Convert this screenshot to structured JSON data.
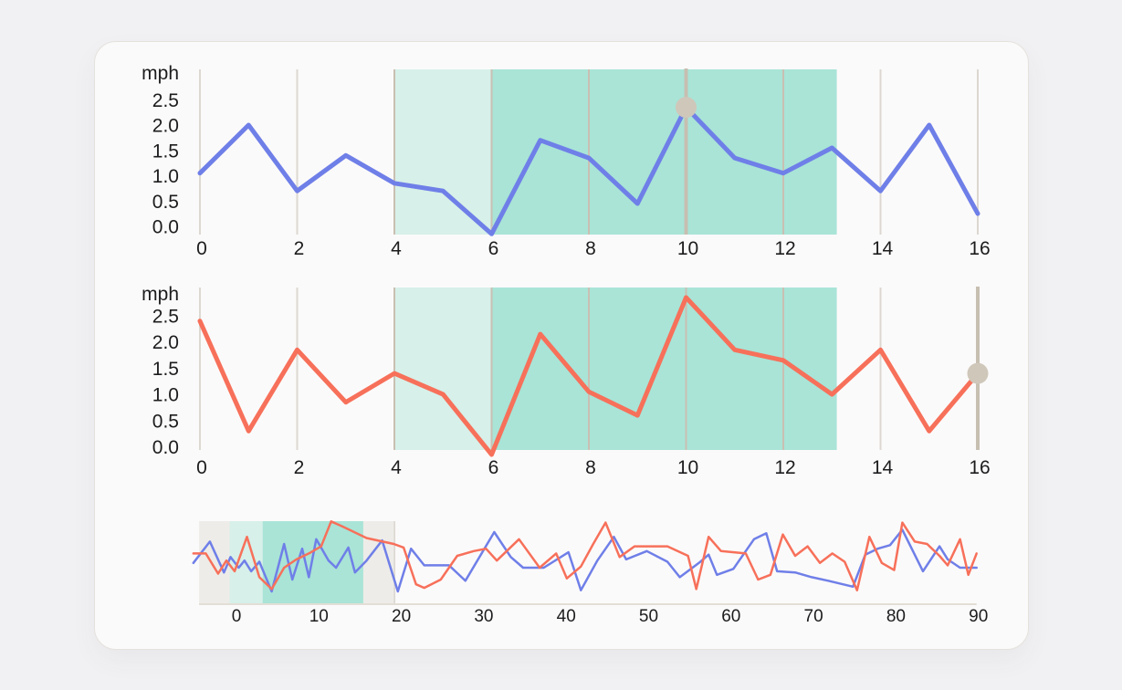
{
  "page": {
    "background": "#f1f0f2"
  },
  "card": {
    "background": "#fbfafa",
    "border_color": "#e5e2dd"
  },
  "colors": {
    "series_blue": "#6f7fe8",
    "series_orange": "#f7705a",
    "region_light": "#d7f0e9",
    "region_dark": "#a9e4d7",
    "overview_gray": "#edece8",
    "grid_light": "#dcd8d1",
    "grid_in_region": "#c9c0b3",
    "crosshair": "#c7bfb1",
    "marker": "#cfc7ba",
    "axis_line": "#e2ded6",
    "text": "#1c1c1e"
  },
  "chart_data": [
    {
      "id": "speed-chart-top",
      "type": "line",
      "title": "",
      "ylabel": "mph",
      "xlabel": "",
      "ylim": [
        0.0,
        2.5
      ],
      "xlim": [
        -0.2,
        16.3
      ],
      "grid": true,
      "legend_position": "none",
      "y_tick_labels": [
        "0.0",
        "0.5",
        "1.0",
        "1.5",
        "2.0",
        "2.5"
      ],
      "y_tick_values": [
        0.0,
        0.5,
        1.0,
        1.5,
        2.0,
        2.5
      ],
      "x_tick_labels": [
        "0",
        "2",
        "4",
        "6",
        "8",
        "10",
        "12",
        "14",
        "16"
      ],
      "x_tick_values": [
        0,
        2,
        4,
        6,
        8,
        10,
        12,
        14,
        16
      ],
      "categories": [
        0,
        1,
        2,
        3,
        4,
        5,
        6,
        7,
        8,
        9,
        10,
        11,
        12,
        13,
        14,
        15,
        16
      ],
      "series": [
        {
          "name": "blue-speed",
          "color": "series_blue",
          "values": [
            1.05,
            2.0,
            0.7,
            1.4,
            0.85,
            0.7,
            -0.15,
            1.7,
            1.35,
            0.45,
            2.35,
            1.35,
            1.05,
            1.55,
            0.7,
            2.0,
            0.25
          ]
        }
      ],
      "regions": [
        {
          "name": "selection-light",
          "from": 4,
          "to": 6,
          "color": "region_light"
        },
        {
          "name": "selection-dark",
          "from": 6,
          "to": 13.1,
          "color": "region_dark"
        }
      ],
      "crosshair": {
        "x": 10
      },
      "marker": {
        "x": 10,
        "value": 2.35
      }
    },
    {
      "id": "speed-chart-middle",
      "type": "line",
      "title": "",
      "ylabel": "mph",
      "xlabel": "",
      "ylim": [
        0.0,
        2.5
      ],
      "xlim": [
        -0.2,
        16.3
      ],
      "grid": true,
      "legend_position": "none",
      "y_tick_labels": [
        "0.0",
        "0.5",
        "1.0",
        "1.5",
        "2.0",
        "2.5"
      ],
      "y_tick_values": [
        0.0,
        0.5,
        1.0,
        1.5,
        2.0,
        2.5
      ],
      "x_tick_labels": [
        "0",
        "2",
        "4",
        "6",
        "8",
        "10",
        "12",
        "14",
        "16"
      ],
      "x_tick_values": [
        0,
        2,
        4,
        6,
        8,
        10,
        12,
        14,
        16
      ],
      "categories": [
        0,
        1,
        2,
        3,
        4,
        5,
        6,
        7,
        8,
        9,
        10,
        11,
        12,
        13,
        14,
        15,
        16
      ],
      "series": [
        {
          "name": "orange-speed",
          "color": "series_orange",
          "values": [
            2.4,
            0.3,
            1.85,
            0.85,
            1.4,
            1.0,
            -0.15,
            2.15,
            1.05,
            0.6,
            2.85,
            1.85,
            1.65,
            1.0,
            1.85,
            0.3,
            1.4
          ]
        }
      ],
      "regions": [
        {
          "name": "selection-light",
          "from": 4,
          "to": 6,
          "color": "region_light"
        },
        {
          "name": "selection-dark",
          "from": 6,
          "to": 13.1,
          "color": "region_dark"
        }
      ],
      "crosshair": {
        "x": 16
      },
      "marker": {
        "x": 16,
        "value": 1.4
      }
    },
    {
      "id": "overview-chart",
      "type": "line",
      "title": "",
      "ylabel": "",
      "xlabel": "",
      "xlim": [
        -5,
        90.5
      ],
      "grid": false,
      "legend_position": "none",
      "x_tick_labels": [
        "0",
        "10",
        "20",
        "30",
        "40",
        "50",
        "60",
        "70",
        "80",
        "90"
      ],
      "x_tick_values": [
        0,
        10,
        20,
        30,
        40,
        50,
        60,
        70,
        80,
        90
      ],
      "series": [
        {
          "name": "blue-speed-overview",
          "color": "series_blue",
          "points": [
            [
              -5,
              1.2
            ],
            [
              -3,
              2.1
            ],
            [
              -1.3,
              0.8
            ],
            [
              -0.5,
              1.45
            ],
            [
              0.5,
              1.0
            ],
            [
              1.2,
              1.3
            ],
            [
              2,
              0.85
            ],
            [
              3,
              1.25
            ],
            [
              4.5,
              0.0
            ],
            [
              6,
              2.0
            ],
            [
              7,
              0.5
            ],
            [
              8.2,
              1.8
            ],
            [
              9,
              0.6
            ],
            [
              9.9,
              2.2
            ],
            [
              11.4,
              1.3
            ],
            [
              12.3,
              1.0
            ],
            [
              13.8,
              1.85
            ],
            [
              14.6,
              0.8
            ],
            [
              16,
              1.3
            ],
            [
              17.9,
              2.15
            ],
            [
              19.8,
              0.0
            ],
            [
              21.4,
              1.8
            ],
            [
              23,
              1.1
            ],
            [
              26,
              1.1
            ],
            [
              28,
              0.45
            ],
            [
              31.5,
              2.5
            ],
            [
              33.5,
              1.45
            ],
            [
              35,
              1.0
            ],
            [
              37.5,
              1.0
            ],
            [
              40.5,
              1.65
            ],
            [
              42,
              0.05
            ],
            [
              44,
              1.3
            ],
            [
              46,
              2.3
            ],
            [
              47.5,
              1.35
            ],
            [
              50,
              1.7
            ],
            [
              52.5,
              1.25
            ],
            [
              54,
              0.6
            ],
            [
              56.5,
              1.25
            ],
            [
              57.5,
              1.55
            ],
            [
              58.5,
              0.7
            ],
            [
              60.5,
              0.95
            ],
            [
              63,
              2.2
            ],
            [
              64.5,
              2.45
            ],
            [
              65.8,
              0.85
            ],
            [
              68,
              0.8
            ],
            [
              70,
              0.6
            ],
            [
              72,
              0.45
            ],
            [
              75,
              0.2
            ],
            [
              76.5,
              1.55
            ],
            [
              78,
              1.8
            ],
            [
              79.5,
              1.95
            ],
            [
              81,
              2.6
            ],
            [
              83.5,
              0.85
            ],
            [
              85.5,
              1.9
            ],
            [
              86.5,
              1.35
            ],
            [
              88,
              1.0
            ],
            [
              90,
              1.0
            ]
          ]
        },
        {
          "name": "orange-speed-overview",
          "color": "series_orange",
          "points": [
            [
              -5,
              1.6
            ],
            [
              -3.5,
              1.6
            ],
            [
              -2,
              0.75
            ],
            [
              -1,
              1.3
            ],
            [
              0,
              0.85
            ],
            [
              1.5,
              2.3
            ],
            [
              3,
              0.6
            ],
            [
              4.5,
              0.1
            ],
            [
              6,
              1.0
            ],
            [
              7.5,
              1.35
            ],
            [
              9,
              1.6
            ],
            [
              10.5,
              1.9
            ],
            [
              11.7,
              2.95
            ],
            [
              13,
              2.75
            ],
            [
              16,
              2.25
            ],
            [
              19.3,
              2.0
            ],
            [
              20.5,
              1.85
            ],
            [
              22,
              0.3
            ],
            [
              23,
              0.15
            ],
            [
              25,
              0.5
            ],
            [
              27,
              1.5
            ],
            [
              29,
              1.7
            ],
            [
              30.5,
              1.8
            ],
            [
              31.8,
              1.3
            ],
            [
              34.5,
              2.2
            ],
            [
              37,
              1.0
            ],
            [
              39,
              1.6
            ],
            [
              40.3,
              0.55
            ],
            [
              42,
              1.05
            ],
            [
              43.5,
              2.0
            ],
            [
              45,
              2.9
            ],
            [
              46.7,
              1.45
            ],
            [
              48.5,
              1.9
            ],
            [
              52.5,
              1.9
            ],
            [
              55,
              1.5
            ],
            [
              56,
              0.1
            ],
            [
              57.5,
              2.3
            ],
            [
              59,
              1.7
            ],
            [
              62,
              1.6
            ],
            [
              63.5,
              0.5
            ],
            [
              65,
              0.7
            ],
            [
              66.5,
              2.4
            ],
            [
              68,
              1.5
            ],
            [
              69.5,
              1.9
            ],
            [
              71,
              1.2
            ],
            [
              72.5,
              1.6
            ],
            [
              74,
              1.25
            ],
            [
              75.5,
              0.05
            ],
            [
              77,
              2.3
            ],
            [
              78.5,
              1.2
            ],
            [
              80,
              0.9
            ],
            [
              81,
              2.9
            ],
            [
              82.5,
              2.1
            ],
            [
              84,
              2.0
            ],
            [
              85.5,
              1.5
            ],
            [
              86.5,
              1.1
            ],
            [
              88,
              2.2
            ],
            [
              89,
              0.7
            ],
            [
              90,
              1.6
            ]
          ]
        }
      ],
      "regions": [
        {
          "name": "brush-window",
          "from": -4.3,
          "to": 19.4,
          "color": "overview_gray",
          "border_right": true
        },
        {
          "name": "selection-light",
          "from": -0.6,
          "to": 3.4,
          "color": "region_light"
        },
        {
          "name": "selection-dark",
          "from": 3.4,
          "to": 15.6,
          "color": "region_dark"
        }
      ],
      "axis_line": true
    }
  ]
}
